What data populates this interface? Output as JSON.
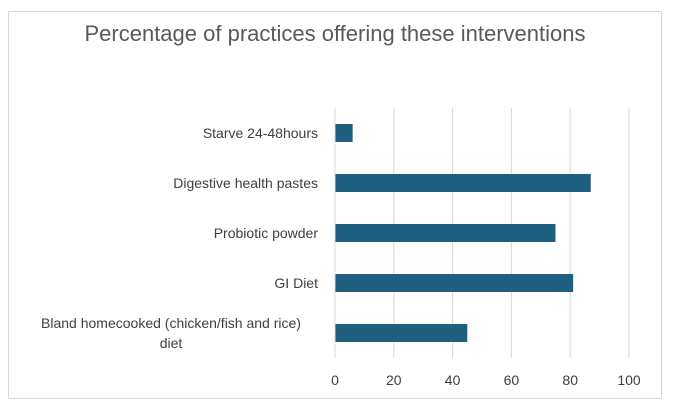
{
  "chart_data": {
    "type": "bar",
    "orientation": "horizontal",
    "title": "Percentage of practices offering these interventions",
    "categories": [
      "Starve 24-48hours",
      "Digestive health pastes",
      "Probiotic powder",
      "GI Diet",
      "Bland homecooked (chicken/fish and rice) diet"
    ],
    "category_lines": [
      [
        "Starve 24-48hours"
      ],
      [
        "Digestive health pastes"
      ],
      [
        "Probiotic powder"
      ],
      [
        "GI Diet"
      ],
      [
        "Bland homecooked (chicken/fish and rice)",
        "diet"
      ]
    ],
    "values": [
      6,
      87,
      75,
      81,
      45
    ],
    "xlabel": "",
    "ylabel": "",
    "xlim": [
      0,
      100
    ],
    "xticks": [
      "0",
      "20",
      "40",
      "60",
      "80",
      "100"
    ],
    "grid": true,
    "legend": "none",
    "bar_color": "#1f5f7f",
    "grid_color": "#d9d9d9"
  }
}
